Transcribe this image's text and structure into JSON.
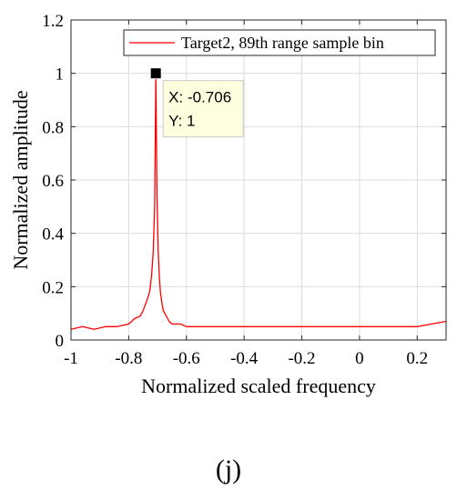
{
  "chart_data": {
    "type": "line",
    "title": "",
    "xlabel": "Normalized scaled frequency",
    "ylabel": "Normalized amplitude",
    "xlim": [
      -1,
      0.3
    ],
    "ylim": [
      0,
      1.2
    ],
    "xticks": [
      -1,
      -0.8,
      -0.6,
      -0.4,
      -0.2,
      0,
      0.2
    ],
    "xtick_labels": [
      "-1",
      "-0.8",
      "-0.6",
      "-0.4",
      "-0.2",
      "0",
      "0.2"
    ],
    "yticks": [
      0,
      0.2,
      0.4,
      0.6,
      0.8,
      1,
      1.2
    ],
    "ytick_labels": [
      "0",
      "0.2",
      "0.4",
      "0.6",
      "0.8",
      "1",
      "1.2"
    ],
    "grid": true,
    "legend_position": "top-right",
    "series": [
      {
        "name": "Target2, 89th range sample bin",
        "color": "#ff0000",
        "x": [
          -1.0,
          -0.96,
          -0.92,
          -0.88,
          -0.84,
          -0.8,
          -0.78,
          -0.76,
          -0.75,
          -0.74,
          -0.73,
          -0.725,
          -0.72,
          -0.715,
          -0.71,
          -0.706,
          -0.702,
          -0.698,
          -0.694,
          -0.69,
          -0.685,
          -0.68,
          -0.67,
          -0.66,
          -0.65,
          -0.62,
          -0.6,
          -0.55,
          -0.5,
          -0.45,
          -0.4,
          -0.35,
          -0.3,
          -0.25,
          -0.2,
          -0.15,
          -0.1,
          -0.05,
          0.0,
          0.05,
          0.1,
          0.15,
          0.2,
          0.25,
          0.3
        ],
        "y": [
          0.04,
          0.05,
          0.04,
          0.05,
          0.05,
          0.06,
          0.08,
          0.09,
          0.11,
          0.14,
          0.17,
          0.2,
          0.25,
          0.33,
          0.5,
          1.0,
          0.55,
          0.34,
          0.24,
          0.18,
          0.14,
          0.11,
          0.09,
          0.07,
          0.06,
          0.06,
          0.05,
          0.05,
          0.05,
          0.05,
          0.05,
          0.05,
          0.05,
          0.05,
          0.05,
          0.05,
          0.05,
          0.05,
          0.05,
          0.05,
          0.05,
          0.05,
          0.05,
          0.06,
          0.07
        ]
      }
    ],
    "datatip": {
      "x": -0.706,
      "y": 1,
      "x_label": "X: -0.706",
      "y_label": "Y: 1"
    }
  },
  "caption": "(j)"
}
